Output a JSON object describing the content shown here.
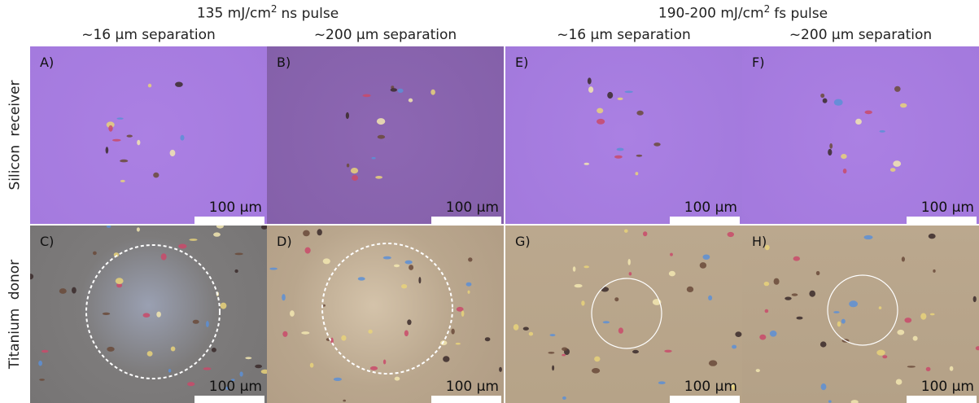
{
  "column_groups": [
    {
      "title": {
        "before": "135 mJ/cm",
        "superscript": "2",
        "after": "ns pulse"
      },
      "columns": [
        "~16 µm separation",
        "~200 µm separation"
      ]
    },
    {
      "title": {
        "before": "190-200 mJ/cm",
        "superscript": "2",
        "after": "fs pulse"
      },
      "columns": [
        "~16 µm separation",
        "~200 µm separation"
      ]
    }
  ],
  "row_labels": [
    "Silicon receiver",
    "Titanium donor"
  ],
  "panels": [
    {
      "label": "A)",
      "scale_bar": "100 µm"
    },
    {
      "label": "B)",
      "scale_bar": "100 µm"
    },
    {
      "label": "E)",
      "scale_bar": "100 µm"
    },
    {
      "label": "F)",
      "scale_bar": "100 µm"
    },
    {
      "label": "C)",
      "scale_bar": "100 µm"
    },
    {
      "label": "D)",
      "scale_bar": "100 µm"
    },
    {
      "label": "G)",
      "scale_bar": "100 µm"
    },
    {
      "label": "H)",
      "scale_bar": "100 µm"
    }
  ]
}
